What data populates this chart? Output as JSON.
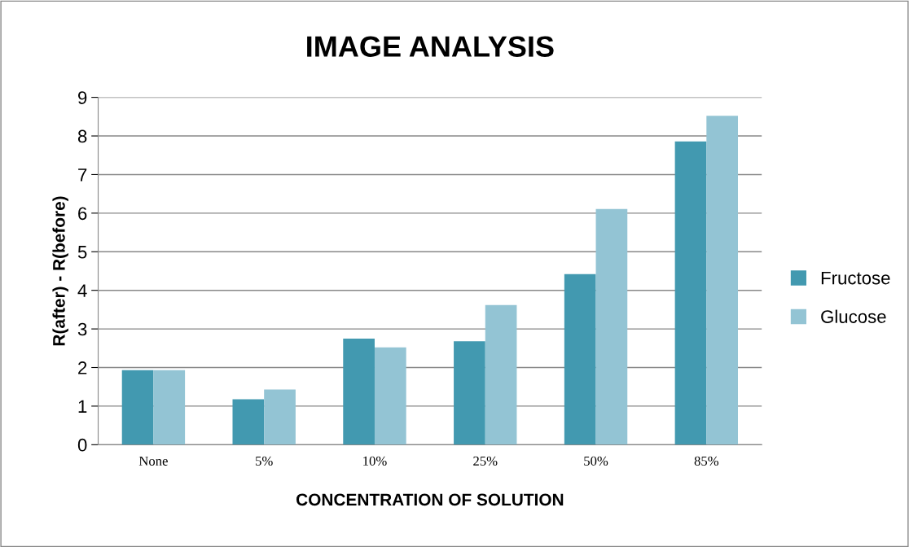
{
  "chart_data": {
    "type": "bar",
    "title": "IMAGE ANALYSIS",
    "xlabel": "CONCENTRATION OF SOLUTION",
    "ylabel": "R(after) - R(before)",
    "categories": [
      "None",
      "5%",
      "10%",
      "25%",
      "50%",
      "85%"
    ],
    "series": [
      {
        "name": "Fructose",
        "color": "#4299b0",
        "values": [
          1.93,
          1.18,
          2.75,
          2.68,
          4.42,
          7.86
        ]
      },
      {
        "name": "Glucose",
        "color": "#93c4d4",
        "values": [
          1.93,
          1.43,
          2.52,
          3.62,
          6.11,
          8.52
        ]
      }
    ],
    "ylim": [
      0,
      9
    ],
    "yticks": [
      0,
      1,
      2,
      3,
      4,
      5,
      6,
      7,
      8,
      9
    ],
    "grid": "y",
    "legend": "right"
  }
}
